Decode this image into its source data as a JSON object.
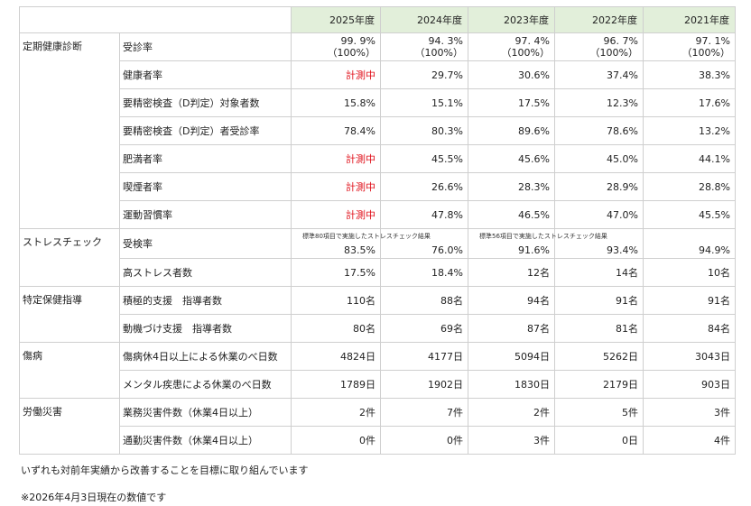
{
  "years": [
    "2025年度",
    "2024年度",
    "2023年度",
    "2022年度",
    "2021年度"
  ],
  "categories": {
    "health_check": "定期健康診断",
    "stress_check": "ストレスチェック",
    "specific_guidance": "特定保健指導",
    "illness": "傷病",
    "industrial_accident": "労働災害"
  },
  "rows": [
    {
      "item": "受診率",
      "values": [
        "99. 9%",
        "94. 3%",
        "97. 4%",
        "96. 7%",
        "97. 1%"
      ],
      "sub": [
        "（100%）",
        "（100%）",
        "（100%）",
        "（100%）",
        "（100%）"
      ]
    },
    {
      "item": "健康者率",
      "values": [
        "計測中",
        "29.7%",
        "30.6%",
        "37.4%",
        "38.3%"
      ]
    },
    {
      "item": "要精密検査（D判定）対象者数",
      "values": [
        "15.8%",
        "15.1%",
        "17.5%",
        "12.3%",
        "17.6%"
      ]
    },
    {
      "item": "要精密検査（D判定）者受診率",
      "values": [
        "78.4%",
        "80.3%",
        "89.6%",
        "78.6%",
        "13.2%"
      ]
    },
    {
      "item": "肥満者率",
      "values": [
        "計測中",
        "45.5%",
        "45.6%",
        "45.0%",
        "44.1%"
      ]
    },
    {
      "item": "喫煙者率",
      "values": [
        "計測中",
        "26.6%",
        "28.3%",
        "28.9%",
        "28.8%"
      ]
    },
    {
      "item": "運動習慣率",
      "values": [
        "計測中",
        "47.8%",
        "46.5%",
        "47.0%",
        "45.5%"
      ]
    },
    {
      "item": "受検率",
      "values": [
        "83.5%",
        "76.0%",
        "91.6%",
        "93.4%",
        "94.9%"
      ]
    },
    {
      "item": "高ストレス者数",
      "values": [
        "17.5%",
        "18.4%",
        "12名",
        "14名",
        "10名"
      ]
    },
    {
      "item": "積極的支援　指導者数",
      "values": [
        "110名",
        "88名",
        "94名",
        "91名",
        "91名"
      ]
    },
    {
      "item": "動機づけ支援　指導者数",
      "values": [
        "80名",
        "69名",
        "87名",
        "81名",
        "84名"
      ]
    },
    {
      "item": "傷病休4日以上による休業のべ日数",
      "values": [
        "4824日",
        "4177日",
        "5094日",
        "5262日",
        "3043日"
      ]
    },
    {
      "item": "メンタル疾患による休業のべ日数",
      "values": [
        "1789日",
        "1902日",
        "1830日",
        "2179日",
        "903日"
      ]
    },
    {
      "item": "業務災害件数（休業4日以上）",
      "values": [
        "2件",
        "7件",
        "2件",
        "5件",
        "3件"
      ]
    },
    {
      "item": "通勤災害件数（休業4日以上）",
      "values": [
        "0件",
        "0件",
        "3件",
        "0日",
        "4件"
      ]
    }
  ],
  "stress_notes": {
    "note_80": "標準80項目で実施したストレスチェック結果",
    "note_56": "標準56項目で実施したストレスチェック結果"
  },
  "notes": {
    "goal": "いずれも対前年実績から改善することを目標に取り組んでいます",
    "asof": "※2026年4月3日現在の数値です"
  },
  "colors": {
    "header_bg": "#e2efda",
    "measuring": "#e0101a",
    "border": "#cfcfcf"
  }
}
